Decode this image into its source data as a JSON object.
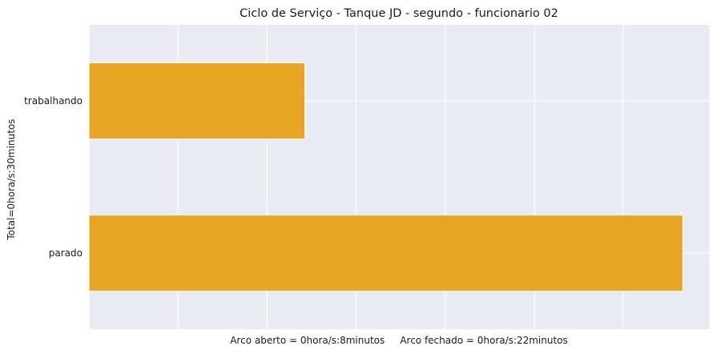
{
  "chart_data": {
    "type": "bar",
    "orientation": "horizontal",
    "title": "Ciclo de Serviço - Tanque JD - segundo - funcionario 02",
    "categories": [
      "trabalhando",
      "parado"
    ],
    "values": [
      8,
      22
    ],
    "xlabel": "Arco aberto = 0hora/s:8minutos     Arco fechado = 0hora/s:22minutos",
    "ylabel": "Total=0hora/s:30minutos",
    "xlim": [
      0,
      23
    ],
    "x_gridlines": [
      0,
      3.3,
      6.6,
      9.9,
      13.2,
      16.5,
      19.8,
      23
    ],
    "grid": true,
    "bar_color": "#E8A423",
    "background_color": "#EAEAF2",
    "grid_color": "#FFFFFF"
  }
}
